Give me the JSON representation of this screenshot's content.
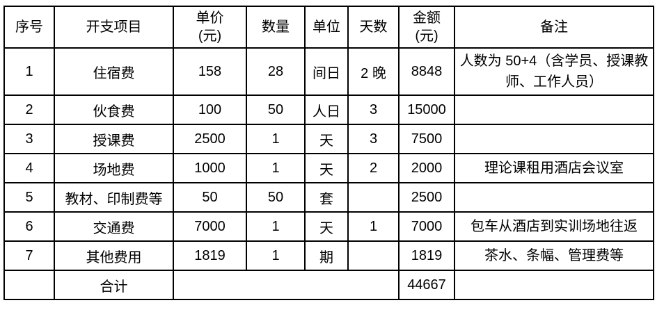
{
  "table": {
    "headers": [
      "序号",
      "开支项目",
      "单价\n(元)",
      "数量",
      "单位",
      "天数",
      "金额\n(元)",
      "备注"
    ],
    "rows": [
      {
        "no": "1",
        "item": "住宿费",
        "price": "158",
        "qty": "28",
        "unit": "间日",
        "days": "2 晚",
        "amount": "8848",
        "remark": "人数为 50+4（含学员、授课教师、工作人员）"
      },
      {
        "no": "2",
        "item": "伙食费",
        "price": "100",
        "qty": "50",
        "unit": "人日",
        "days": "3",
        "amount": "15000",
        "remark": ""
      },
      {
        "no": "3",
        "item": "授课费",
        "price": "2500",
        "qty": "1",
        "unit": "天",
        "days": "3",
        "amount": "7500",
        "remark": ""
      },
      {
        "no": "4",
        "item": "场地费",
        "price": "1000",
        "qty": "1",
        "unit": "天",
        "days": "2",
        "amount": "2000",
        "remark": "理论课租用酒店会议室"
      },
      {
        "no": "5",
        "item": "教材、印制费等",
        "price": "50",
        "qty": "50",
        "unit": "套",
        "days": "",
        "amount": "2500",
        "remark": ""
      },
      {
        "no": "6",
        "item": "交通费",
        "price": "7000",
        "qty": "1",
        "unit": "天",
        "days": "1",
        "amount": "7000",
        "remark": "包车从酒店到实训场地往返"
      },
      {
        "no": "7",
        "item": "其他费用",
        "price": "1819",
        "qty": "1",
        "unit": "期",
        "days": "",
        "amount": "1819",
        "remark": "茶水、条幅、管理费等"
      }
    ],
    "total_row": {
      "label": "合计",
      "amount": "44667"
    },
    "colors": {
      "border": "#000000",
      "text": "#000000",
      "background": "#ffffff"
    }
  }
}
